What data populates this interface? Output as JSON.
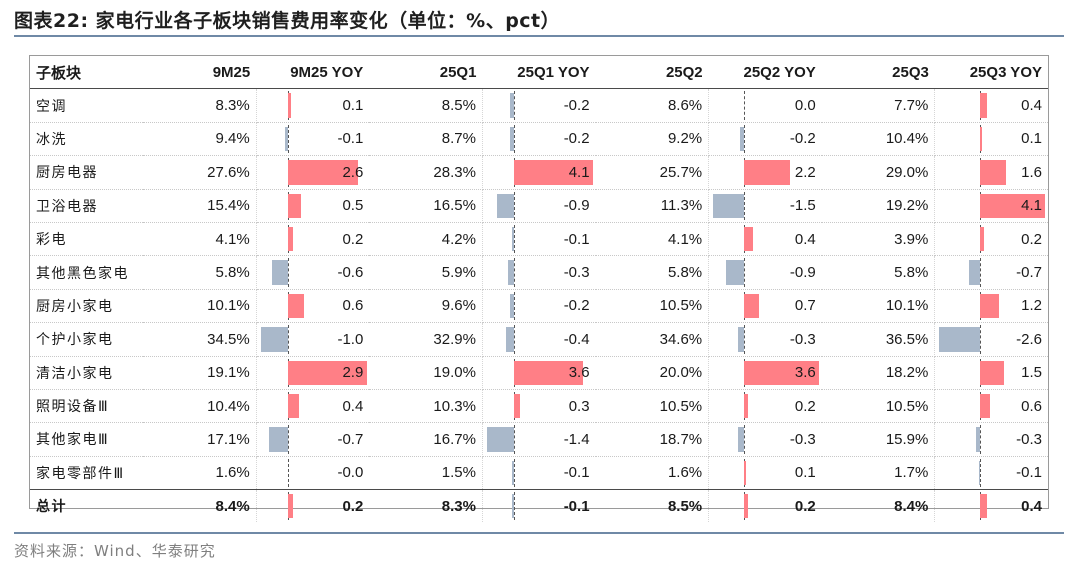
{
  "title": "图表22:  家电行业各子板块销售费用率变化（单位：%、pct）",
  "source": "资料来源：Wind、华泰研究",
  "colors": {
    "positive_bar": "#ff7f86",
    "negative_bar": "#a9b8ca",
    "flag": "#2e9e34",
    "rule": "#6f89a6"
  },
  "headers": [
    "子板块",
    "9M25",
    "9M25 YOY",
    "25Q1",
    "25Q1 YOY",
    "25Q2",
    "25Q2 YOY",
    "25Q3",
    "25Q3 YOY"
  ],
  "rows": [
    {
      "name": "空调",
      "cells": [
        "8.3%",
        "0.1",
        "8.5%",
        "-0.2",
        "8.6%",
        "0.0",
        "7.7%",
        "0.4"
      ],
      "yoy": [
        0.1,
        -0.2,
        0.0,
        0.4
      ],
      "flags": [
        true,
        true,
        false
      ]
    },
    {
      "name": "冰洗",
      "cells": [
        "9.4%",
        "-0.1",
        "8.7%",
        "-0.2",
        "9.2%",
        "-0.2",
        "10.4%",
        "0.1"
      ],
      "yoy": [
        -0.1,
        -0.2,
        -0.2,
        0.1
      ],
      "flags": [
        true,
        false,
        false
      ]
    },
    {
      "name": "厨房电器",
      "cells": [
        "27.6%",
        "2.6",
        "28.3%",
        "4.1",
        "25.7%",
        "2.2",
        "29.0%",
        "1.6"
      ],
      "yoy": [
        2.6,
        4.1,
        2.2,
        1.6
      ],
      "flags": [
        true,
        true,
        false
      ]
    },
    {
      "name": "卫浴电器",
      "cells": [
        "15.4%",
        "0.5",
        "16.5%",
        "-0.9",
        "11.3%",
        "-1.5",
        "19.2%",
        "4.1"
      ],
      "yoy": [
        0.5,
        -0.9,
        -1.5,
        4.1
      ],
      "flags": [
        true,
        false,
        false
      ]
    },
    {
      "name": "彩电",
      "cells": [
        "4.1%",
        "0.2",
        "4.2%",
        "-0.1",
        "4.1%",
        "0.4",
        "3.9%",
        "0.2"
      ],
      "yoy": [
        0.2,
        -0.1,
        0.4,
        0.2
      ],
      "flags": [
        true,
        false,
        false
      ]
    },
    {
      "name": "其他黑色家电",
      "cells": [
        "5.8%",
        "-0.6",
        "5.9%",
        "-0.3",
        "5.8%",
        "-0.9",
        "5.8%",
        "-0.7"
      ],
      "yoy": [
        -0.6,
        -0.3,
        -0.9,
        -0.7
      ],
      "flags": [
        true,
        true,
        false
      ]
    },
    {
      "name": "厨房小家电",
      "cells": [
        "10.1%",
        "0.6",
        "9.6%",
        "-0.2",
        "10.5%",
        "0.7",
        "10.1%",
        "1.2"
      ],
      "yoy": [
        0.6,
        -0.2,
        0.7,
        1.2
      ],
      "flags": [
        true,
        true,
        false
      ]
    },
    {
      "name": "个护小家电",
      "cells": [
        "34.5%",
        "-1.0",
        "32.9%",
        "-0.4",
        "34.6%",
        "-0.3",
        "36.5%",
        "-2.6"
      ],
      "yoy": [
        -1.0,
        -0.4,
        -0.3,
        -2.6
      ],
      "flags": [
        false,
        false,
        false
      ]
    },
    {
      "name": "清洁小家电",
      "cells": [
        "19.1%",
        "2.9",
        "19.0%",
        "3.6",
        "20.0%",
        "3.6",
        "18.2%",
        "1.5"
      ],
      "yoy": [
        2.9,
        3.6,
        3.6,
        1.5
      ],
      "flags": [
        false,
        false,
        false
      ]
    },
    {
      "name": "照明设备Ⅲ",
      "cells": [
        "10.4%",
        "0.4",
        "10.3%",
        "0.3",
        "10.5%",
        "0.2",
        "10.5%",
        "0.6"
      ],
      "yoy": [
        0.4,
        0.3,
        0.2,
        0.6
      ],
      "flags": [
        false,
        false,
        false
      ]
    },
    {
      "name": "其他家电Ⅲ",
      "cells": [
        "17.1%",
        "-0.7",
        "16.7%",
        "-1.4",
        "18.7%",
        "-0.3",
        "15.9%",
        "-0.3"
      ],
      "yoy": [
        -0.7,
        -1.4,
        -0.3,
        -0.3
      ],
      "flags": [
        false,
        false,
        false
      ]
    },
    {
      "name": "家电零部件Ⅲ",
      "cells": [
        "1.6%",
        "-0.0",
        "1.5%",
        "-0.1",
        "1.6%",
        "0.1",
        "1.7%",
        "-0.1"
      ],
      "yoy": [
        -0.0,
        -0.1,
        0.1,
        -0.1
      ],
      "flags": [
        false,
        false,
        false
      ]
    },
    {
      "name": "总计",
      "cells": [
        "8.4%",
        "0.2",
        "8.3%",
        "-0.1",
        "8.5%",
        "0.2",
        "8.4%",
        "0.4"
      ],
      "yoy": [
        0.2,
        -0.1,
        0.2,
        0.4
      ],
      "flags": [
        false,
        false,
        false
      ],
      "total": true
    }
  ],
  "yoy_axis": [
    {
      "min": -1.0,
      "max": 2.9
    },
    {
      "min": -1.4,
      "max": 4.1
    },
    {
      "min": -1.5,
      "max": 3.6
    },
    {
      "min": -2.6,
      "max": 4.1
    }
  ]
}
